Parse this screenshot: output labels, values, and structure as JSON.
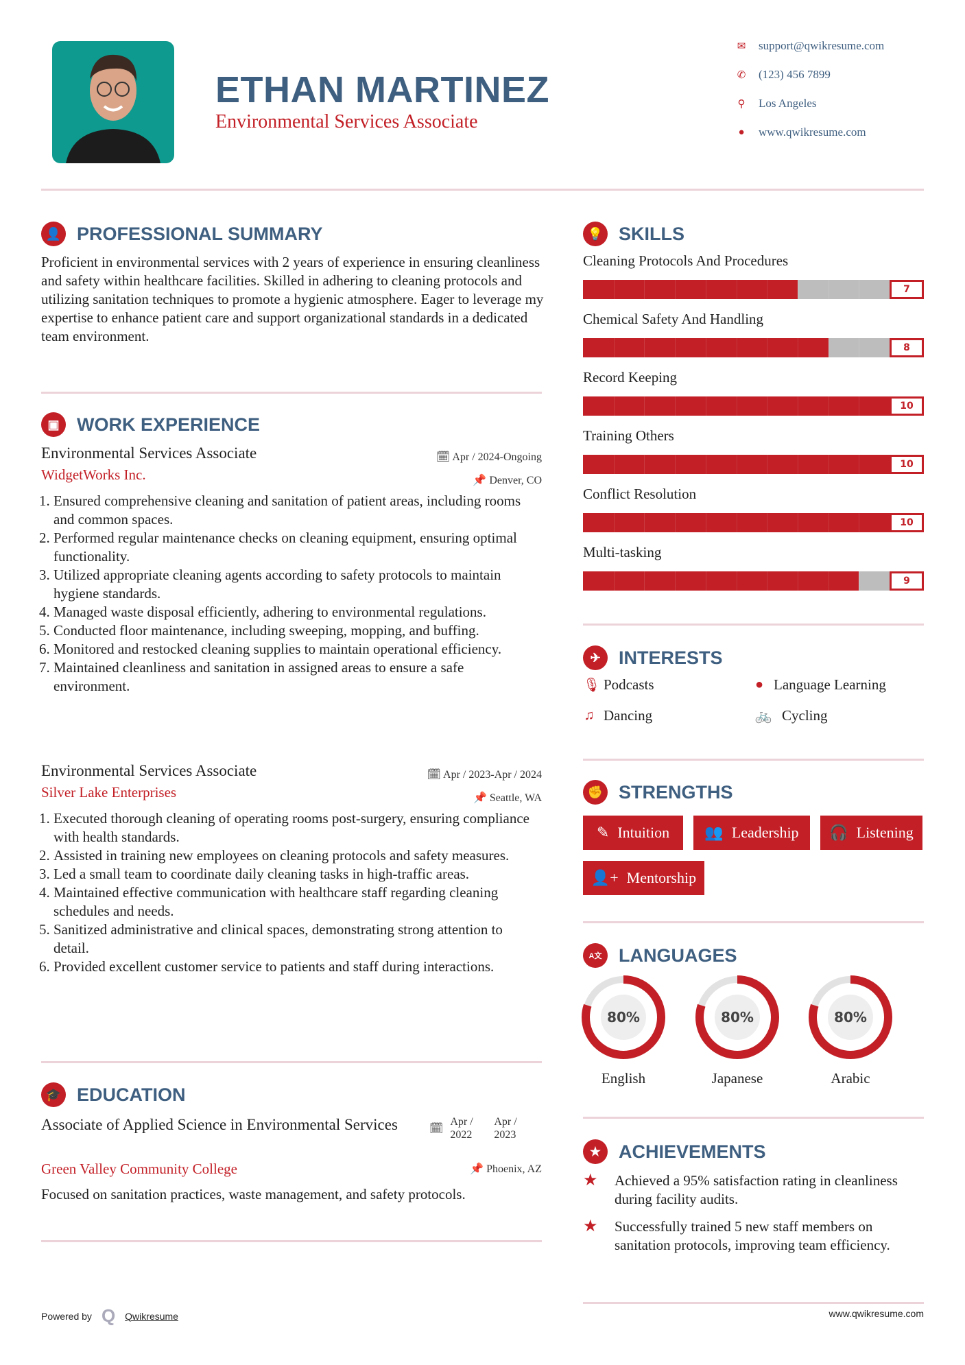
{
  "header": {
    "name": "ETHAN MARTINEZ",
    "title": "Environmental Services Associate",
    "contacts": [
      {
        "icon": "envelope-icon",
        "text": "support@qwikresume.com"
      },
      {
        "icon": "phone-icon",
        "text": "(123) 456 7899"
      },
      {
        "icon": "map-marker-icon",
        "text": "Los Angeles"
      },
      {
        "icon": "globe-icon",
        "text": "www.qwikresume.com"
      }
    ]
  },
  "summary": {
    "heading": "PROFESSIONAL SUMMARY",
    "text": "Proficient in environmental services with 2 years of experience in ensuring cleanliness and safety within healthcare facilities. Skilled in adhering to cleaning protocols and utilizing sanitation techniques to promote a hygienic atmosphere. Eager to leverage my expertise to enhance patient care and support organizational standards in a dedicated team environment."
  },
  "experience": {
    "heading": "WORK EXPERIENCE",
    "jobs": [
      {
        "title": "Environmental Services Associate",
        "company": "WidgetWorks Inc.",
        "dates": "Apr / 2024-Ongoing",
        "location": "Denver, CO",
        "items": [
          "Ensured comprehensive cleaning and sanitation of patient areas, including rooms and common spaces.",
          "Performed regular maintenance checks on cleaning equipment, ensuring optimal functionality.",
          "Utilized appropriate cleaning agents according to safety protocols to maintain hygiene standards.",
          "Managed waste disposal efficiently, adhering to environmental regulations.",
          "Conducted floor maintenance, including sweeping, mopping, and buffing.",
          "Monitored and restocked cleaning supplies to maintain operational efficiency.",
          "Maintained cleanliness and sanitation in assigned areas to ensure a safe environment."
        ]
      },
      {
        "title": "Environmental Services Associate",
        "company": "Silver Lake Enterprises",
        "dates": "Apr / 2023-Apr / 2024",
        "location": "Seattle, WA",
        "items": [
          "Executed thorough cleaning of operating rooms post-surgery, ensuring compliance with health standards.",
          "Assisted in training new employees on cleaning protocols and safety measures.",
          "Led a small team to coordinate daily cleaning tasks in high-traffic areas.",
          "Maintained effective communication with healthcare staff regarding cleaning schedules and needs.",
          "Sanitized administrative and clinical spaces, demonstrating strong attention to detail.",
          "Provided excellent customer service to patients and staff during interactions."
        ]
      }
    ]
  },
  "education": {
    "heading": "EDUCATION",
    "degree": "Associate of Applied Science in Environmental Services",
    "school": "Green Valley Community College",
    "start": "Apr / 2022",
    "end": "Apr / 2023",
    "location": "Phoenix, AZ",
    "description": "Focused on sanitation practices, waste management, and safety protocols."
  },
  "skills": {
    "heading": "SKILLS",
    "max": 10,
    "items": [
      {
        "name": "Cleaning Protocols And Procedures",
        "level": 7
      },
      {
        "name": "Chemical Safety And Handling",
        "level": 8
      },
      {
        "name": "Record Keeping",
        "level": 10
      },
      {
        "name": "Training Others",
        "level": 10
      },
      {
        "name": "Conflict Resolution",
        "level": 10
      },
      {
        "name": "Multi-tasking",
        "level": 9
      }
    ]
  },
  "interests": {
    "heading": "INTERESTS",
    "items": [
      {
        "label": "Podcasts",
        "icon": "microphone-icon"
      },
      {
        "label": "Language Learning",
        "icon": "globe-icon"
      },
      {
        "label": "Dancing",
        "icon": "music-icon"
      },
      {
        "label": "Cycling",
        "icon": "bicycle-icon"
      }
    ]
  },
  "strengths": {
    "heading": "STRENGTHS",
    "items": [
      {
        "label": "Intuition",
        "icon": "magic-wand-icon"
      },
      {
        "label": "Leadership",
        "icon": "users-icon"
      },
      {
        "label": "Listening",
        "icon": "headphones-icon"
      },
      {
        "label": "Mentorship",
        "icon": "user-plus-icon"
      }
    ]
  },
  "languages": {
    "heading": "LANGUAGES",
    "items": [
      {
        "name": "English",
        "percent": 80,
        "label": "80%"
      },
      {
        "name": "Japanese",
        "percent": 80,
        "label": "80%"
      },
      {
        "name": "Arabic",
        "percent": 80,
        "label": "80%"
      }
    ]
  },
  "achievements": {
    "heading": "ACHIEVEMENTS",
    "items": [
      "Achieved a 95% satisfaction rating in cleanliness during facility audits.",
      "Successfully trained 5 new staff members on sanitation protocols, improving team efficiency."
    ]
  },
  "footer": {
    "powered_by": "Powered by",
    "brand": "Qwikresume",
    "website": "www.qwikresume.com"
  },
  "colors": {
    "accent": "#c21f26",
    "heading": "#3f5f80",
    "divider": "#ecd3d9",
    "track": "#bdbdbd"
  }
}
